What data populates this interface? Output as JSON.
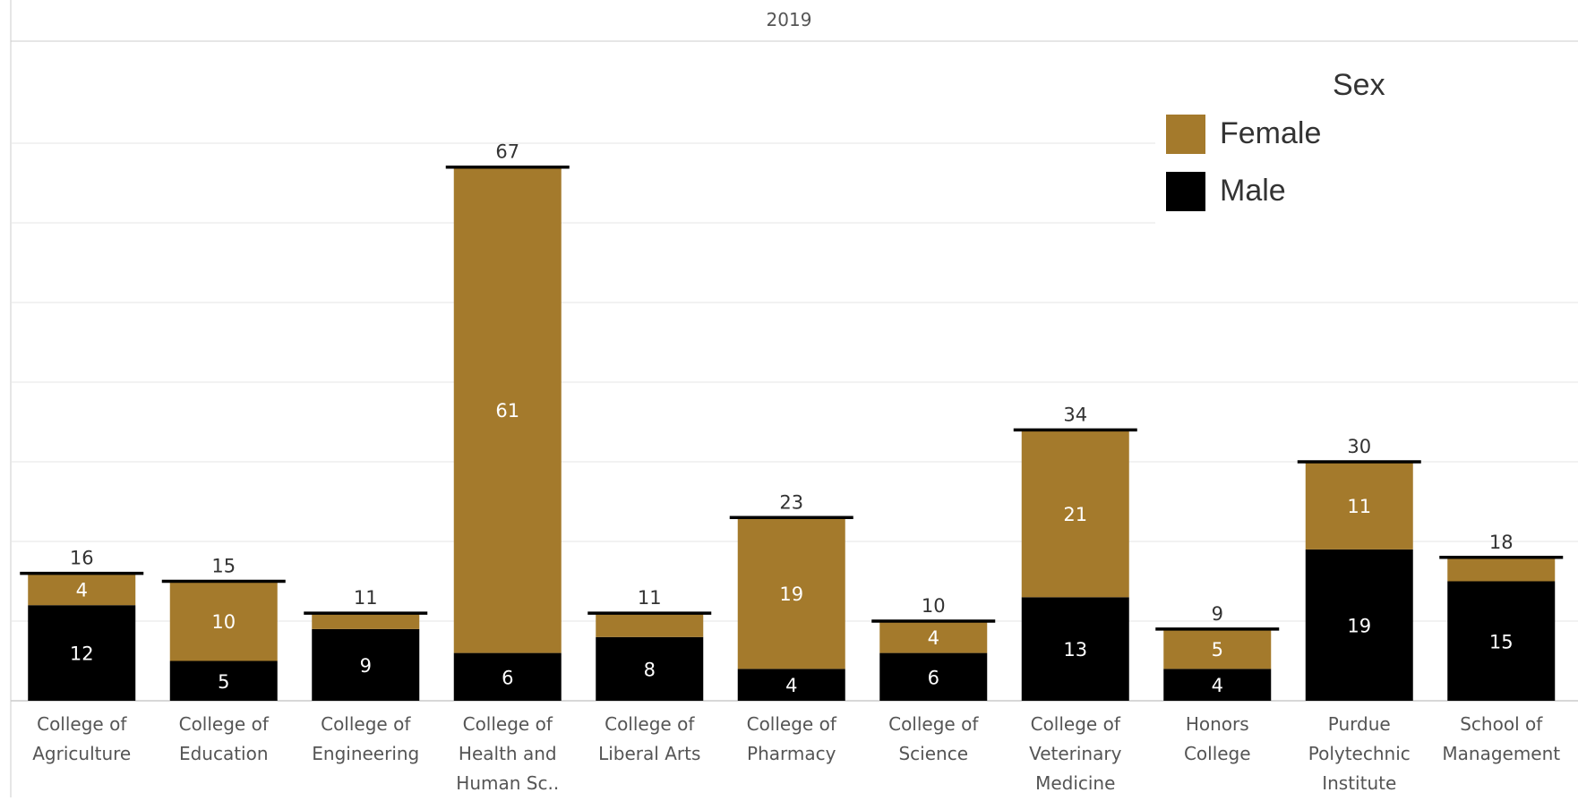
{
  "chart_data": {
    "type": "bar",
    "stacked": true,
    "title": "2019",
    "categories": [
      [
        "College of",
        "Agriculture"
      ],
      [
        "College of",
        "Education"
      ],
      [
        "College of",
        "Engineering"
      ],
      [
        "College of",
        "Health and",
        "Human Sc.."
      ],
      [
        "College of",
        "Liberal Arts"
      ],
      [
        "College of",
        "Pharmacy"
      ],
      [
        "College of",
        "Science"
      ],
      [
        "College of",
        "Veterinary",
        "Medicine"
      ],
      [
        "Honors",
        "College"
      ],
      [
        "Purdue",
        "Polytechnic",
        "Institute"
      ],
      [
        "School of",
        "Management"
      ]
    ],
    "series": [
      {
        "name": "Male",
        "color": "#000000",
        "values": [
          12,
          5,
          9,
          6,
          8,
          4,
          6,
          13,
          4,
          19,
          15
        ]
      },
      {
        "name": "Female",
        "color": "#A47A2C",
        "values": [
          4,
          10,
          2,
          61,
          3,
          19,
          4,
          21,
          5,
          11,
          3
        ]
      }
    ],
    "totals": [
      16,
      15,
      11,
      67,
      11,
      23,
      10,
      34,
      9,
      30,
      18
    ],
    "segment_labels_shown": {
      "Male": [
        true,
        true,
        true,
        true,
        true,
        true,
        true,
        true,
        true,
        true,
        true
      ],
      "Female": [
        true,
        true,
        false,
        true,
        false,
        true,
        true,
        true,
        true,
        true,
        false
      ]
    },
    "ylim": [
      0,
      70
    ],
    "gridlines": [
      10,
      20,
      30,
      40,
      50,
      60,
      70
    ],
    "grid": true,
    "y_axis_labels_shown": false,
    "legend_position": "top-right",
    "xlabel": "",
    "ylabel": ""
  },
  "legend": {
    "title": "Sex",
    "items": [
      {
        "label": "Female",
        "color": "#A47A2C"
      },
      {
        "label": "Male",
        "color": "#000000"
      }
    ]
  },
  "colors": {
    "female": "#A47A2C",
    "male": "#000000",
    "grid": "#e6e6e6",
    "axis": "#cccccc",
    "text": "#333333",
    "inner_label": "#ffffff",
    "total_bar": "#000000"
  }
}
